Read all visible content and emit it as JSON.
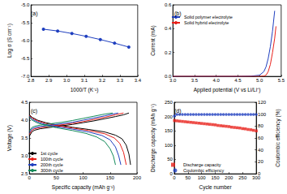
{
  "chart_data": [
    {
      "type": "line",
      "title": "(a)",
      "x_label": "1000/T (K⁻¹)",
      "y_label": "Log σ (S cm⁻¹)",
      "x": [
        2.87,
        2.95,
        3.03,
        3.11,
        3.19,
        3.27,
        3.35
      ],
      "values": [
        -5.68,
        -5.73,
        -5.8,
        -5.88,
        -5.97,
        -6.07,
        -6.18
      ],
      "color": "#1f3fbf",
      "marker": "circle",
      "xlim": [
        2.8,
        3.4
      ],
      "xticks": [
        2.8,
        2.9,
        {
          "value": 3,
          "label": "3.0"
        },
        3.1,
        3.2,
        3.3,
        3.4
      ],
      "ylim": [
        -7,
        -5
      ],
      "yticks": [
        {
          "value": -7,
          "label": "-7.0"
        },
        -6.5,
        {
          "value": -6,
          "label": "-6.0"
        },
        -5.5,
        {
          "value": -5,
          "label": "-5.0"
        }
      ],
      "grid": false
    },
    {
      "type": "line",
      "title": "(b)",
      "x_label": "Applied potential (V vs Li/Li⁺)",
      "y_label": "Current (mA)",
      "series": [
        {
          "name": "Solid polymer electrolyte",
          "color": "#1f3fbf",
          "x": [
            3.0,
            3.5,
            4.0,
            4.5,
            4.8,
            5.0,
            5.1,
            5.15,
            5.2,
            5.25,
            5.3,
            5.35
          ],
          "values": [
            0,
            0,
            0,
            0,
            0.002,
            0.01,
            0.04,
            0.08,
            0.15,
            0.25,
            0.38,
            0.55
          ]
        },
        {
          "name": "Solid hybrid electrolyte",
          "color": "#e8201a",
          "x": [
            3.0,
            3.5,
            4.0,
            4.5,
            5.0,
            5.1,
            5.15,
            5.2,
            5.25,
            5.3,
            5.35,
            5.38
          ],
          "values": [
            0,
            0,
            0,
            0,
            0,
            0.003,
            0.01,
            0.04,
            0.1,
            0.2,
            0.32,
            0.42
          ]
        }
      ],
      "xlim": [
        3,
        5.5
      ],
      "xticks": [
        {
          "value": 3,
          "label": "3.0"
        },
        3.5,
        {
          "value": 4,
          "label": "4.0"
        },
        4.5,
        {
          "value": 5,
          "label": "5.0"
        },
        5.5
      ],
      "ylim": [
        0,
        0.6
      ],
      "yticks": [
        {
          "value": 0,
          "label": "0.0"
        },
        0.2,
        0.4,
        0.6
      ],
      "legend": "upper left",
      "grid": false
    },
    {
      "type": "line",
      "title": "(c)",
      "x_label": "Specific capacity (mAh g⁻¹)",
      "y_label": "Voltage (V)",
      "series": [
        {
          "name": "1st cycle",
          "color": "#000000",
          "x": [
            0,
            5,
            10,
            20,
            40,
            60,
            80,
            100,
            120,
            140,
            160,
            175,
            185,
            null,
            0,
            5,
            15,
            30,
            50,
            80,
            110,
            140,
            160,
            172,
            180,
            185,
            188
          ],
          "values": [
            3.55,
            3.68,
            3.72,
            3.76,
            3.8,
            3.84,
            3.88,
            3.93,
            3.98,
            4.04,
            4.1,
            4.15,
            4.2,
            null,
            4.15,
            4.08,
            4.0,
            3.93,
            3.87,
            3.8,
            3.74,
            3.67,
            3.58,
            3.48,
            3.3,
            3.05,
            2.75
          ]
        },
        {
          "name": "100th cycle",
          "color": "#e8201a",
          "x": [
            0,
            5,
            10,
            20,
            40,
            60,
            80,
            100,
            120,
            140,
            160,
            175,
            null,
            0,
            5,
            15,
            30,
            50,
            80,
            110,
            140,
            158,
            168,
            175,
            180
          ],
          "values": [
            3.6,
            3.72,
            3.76,
            3.79,
            3.83,
            3.87,
            3.91,
            3.96,
            4.02,
            4.08,
            4.15,
            4.2,
            null,
            4.13,
            4.06,
            3.98,
            3.91,
            3.85,
            3.78,
            3.71,
            3.62,
            3.5,
            3.35,
            3.1,
            2.75
          ]
        },
        {
          "name": "200th cycle",
          "color": "#1f3fbf",
          "x": [
            0,
            5,
            10,
            20,
            40,
            60,
            80,
            100,
            120,
            140,
            155,
            165,
            null,
            0,
            5,
            15,
            30,
            50,
            80,
            110,
            135,
            150,
            160,
            166,
            170
          ],
          "values": [
            3.65,
            3.76,
            3.79,
            3.82,
            3.86,
            3.9,
            3.94,
            4.0,
            4.06,
            4.12,
            4.17,
            4.2,
            null,
            4.1,
            4.03,
            3.95,
            3.88,
            3.82,
            3.75,
            3.67,
            3.57,
            3.45,
            3.25,
            3.0,
            2.75
          ]
        },
        {
          "name": "300th cycle",
          "color": "#138a5a",
          "x": [
            0,
            5,
            10,
            20,
            40,
            60,
            80,
            100,
            120,
            140,
            155,
            null,
            0,
            5,
            15,
            30,
            50,
            80,
            105,
            125,
            140,
            150,
            156,
            160
          ],
          "values": [
            3.7,
            3.8,
            3.83,
            3.86,
            3.9,
            3.94,
            3.99,
            4.05,
            4.11,
            4.17,
            4.2,
            null,
            4.08,
            4.0,
            3.92,
            3.85,
            3.79,
            3.71,
            3.63,
            3.53,
            3.4,
            3.2,
            3.0,
            2.75
          ]
        }
      ],
      "xlim": [
        0,
        200
      ],
      "xticks": [
        0,
        50,
        100,
        150,
        200
      ],
      "ylim": [
        2.5,
        4.5
      ],
      "yticks": [
        2.5,
        {
          "value": 3,
          "label": "3.0"
        },
        3.5,
        {
          "value": 4,
          "label": "4.0"
        },
        4.5
      ],
      "legend": "lower left",
      "grid": false
    },
    {
      "type": "scatter",
      "title": "(d)",
      "x_label": "Cycle number",
      "y_label": "Discharge capacity (mAh g⁻¹)",
      "y2_label": "Coulombic efficiency (%)",
      "x": [
        1,
        10,
        20,
        30,
        40,
        50,
        60,
        70,
        80,
        90,
        100,
        110,
        120,
        130,
        140,
        150,
        160,
        170,
        180,
        190,
        200,
        210,
        220,
        230,
        240,
        250,
        260,
        270,
        280,
        290,
        300
      ],
      "series": [
        {
          "name": "Discharge capacity",
          "color": "#e8201a",
          "marker": "square",
          "values": [
            186,
            185,
            184,
            183,
            182,
            181,
            180,
            179,
            178,
            177,
            176,
            175,
            174,
            173,
            172,
            171,
            169,
            168,
            167,
            166,
            165,
            163,
            162,
            161,
            160,
            158,
            157,
            155,
            154,
            152,
            150
          ]
        },
        {
          "name": "Coulombic efficiency",
          "color": "#1f3fbf",
          "marker": "circle",
          "axis": "y2",
          "values": [
            97,
            99.5,
            99.5,
            99.5,
            99.5,
            99.5,
            99.5,
            99.5,
            99.5,
            99.5,
            99.5,
            99.5,
            99.5,
            99.5,
            99.5,
            99.5,
            99.5,
            99.5,
            99.5,
            99.5,
            99.5,
            99.5,
            99.5,
            99.5,
            99.5,
            99.5,
            99.5,
            99.5,
            99.5,
            99.5,
            99.5
          ]
        }
      ],
      "xlim": [
        0,
        300
      ],
      "xticks": [
        0,
        50,
        100,
        150,
        200,
        250,
        300
      ],
      "ylim": [
        0,
        250
      ],
      "yticks": [
        0,
        50,
        100,
        150,
        200,
        250
      ],
      "y2lim": [
        0,
        120
      ],
      "y2ticks": [
        0,
        20,
        40,
        60,
        80,
        100,
        120
      ],
      "legend": "lower left",
      "grid": false
    }
  ]
}
